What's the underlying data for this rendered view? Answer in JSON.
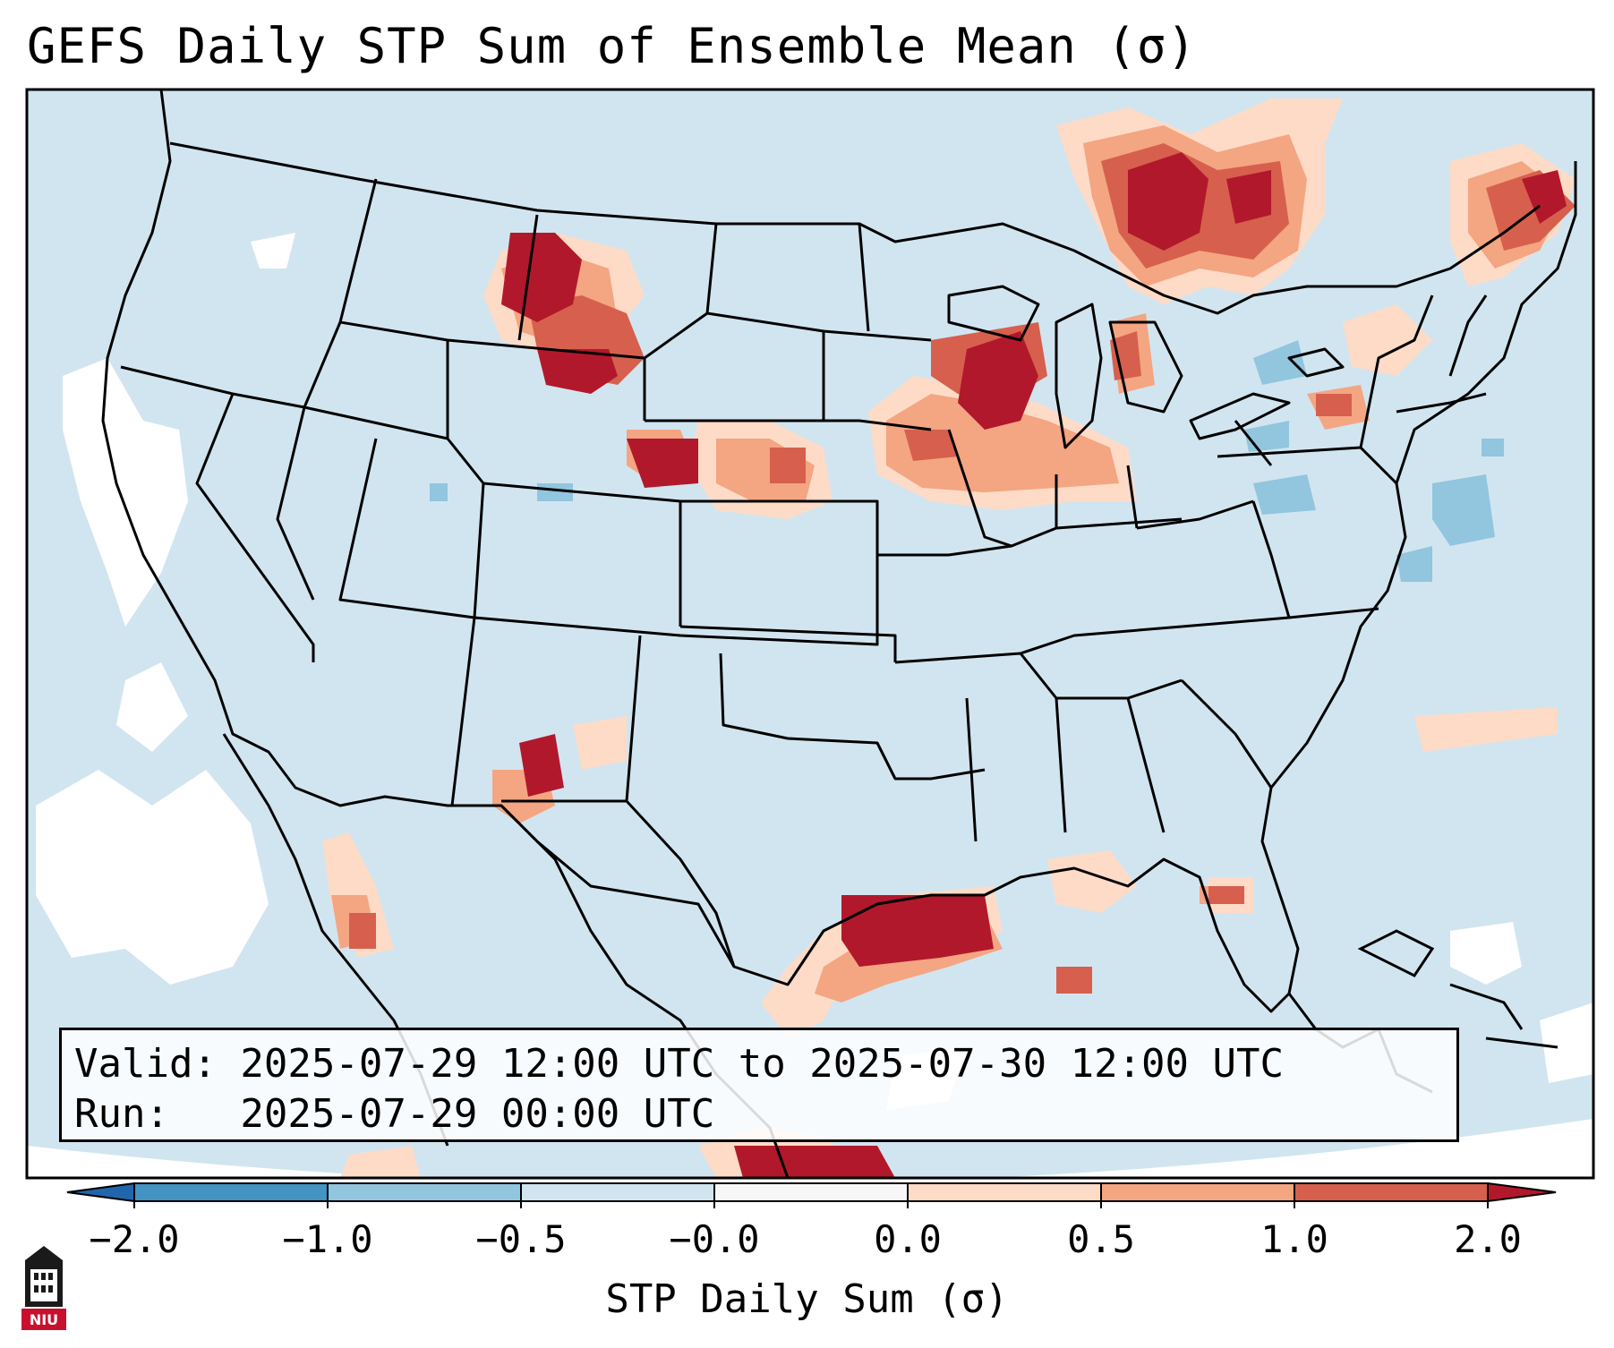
{
  "title": "GEFS Daily STP Sum of Ensemble Mean (σ)",
  "info": {
    "valid": "Valid: 2025-07-29 12:00 UTC to 2025-07-30 12:00 UTC",
    "run": "Run:   2025-07-29 00:00 UTC"
  },
  "colorbar": {
    "label": "STP Daily Sum (σ)",
    "ticks": [
      "−2.0",
      "−1.0",
      "−0.5",
      "−0.0",
      "0.0",
      "0.5",
      "1.0",
      "2.0"
    ],
    "colors": {
      "under": "#2166ac",
      "neg_2_1": "#4393c3",
      "neg_1_05": "#92c5de",
      "neg_05_0": "#d1e5f0",
      "zero": "#f7f7f7",
      "pos_0_05": "#fddbc7",
      "pos_05_1": "#f4a582",
      "pos_1_2": "#d6604d",
      "over": "#b2182b"
    }
  },
  "map": {
    "background": "#d1e5f0",
    "outside": "#ffffff",
    "line_color": "#000000"
  },
  "logo": {
    "text": "NIU",
    "icon": "niu-logo-icon"
  }
}
